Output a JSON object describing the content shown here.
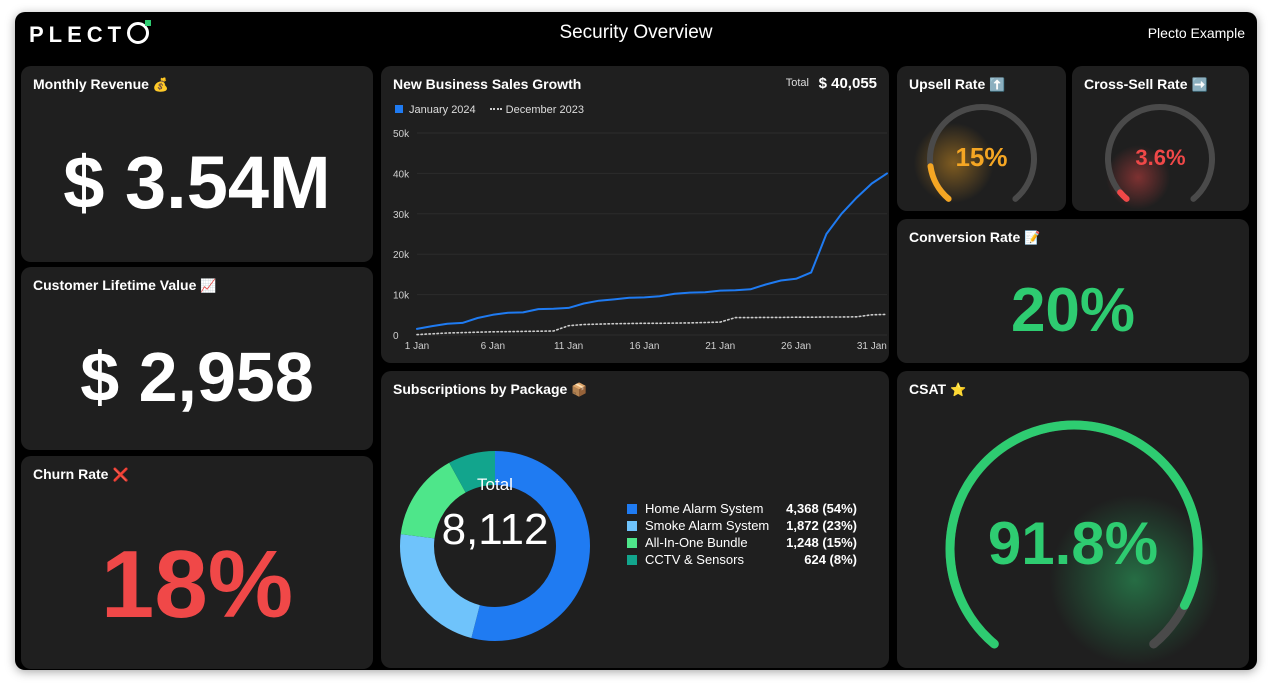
{
  "header": {
    "logo": "PLECT",
    "title": "Security Overview",
    "account": "Plecto Example"
  },
  "monthly_revenue": {
    "title": "Monthly Revenue",
    "emoji": "💰",
    "value": "$ 3.54M"
  },
  "clv": {
    "title": "Customer Lifetime Value",
    "emoji": "📈",
    "value": "$ 2,958"
  },
  "churn": {
    "title": "Churn Rate",
    "emoji": "❌",
    "value": "18%",
    "color": "#f04848"
  },
  "sales_growth": {
    "title": "New Business Sales Growth",
    "total_label": "Total",
    "total_value": "$ 40,055",
    "legend_current": "January 2024",
    "legend_previous": "December 2023"
  },
  "upsell": {
    "title": "Upsell Rate",
    "emoji": "⬆️",
    "value": "15%",
    "percent": 15,
    "color": "#f5a623"
  },
  "crosssell": {
    "title": "Cross-Sell Rate",
    "emoji": "➡️",
    "value": "3.6%",
    "percent": 3.6,
    "color": "#f04848"
  },
  "conversion": {
    "title": "Conversion Rate",
    "emoji": "📝",
    "value": "20%",
    "color": "#2ecc71"
  },
  "subscriptions": {
    "title": "Subscriptions by Package",
    "emoji": "📦",
    "total_label": "Total",
    "total_value": "8,112",
    "items": [
      {
        "name": "Home Alarm System",
        "value": "4,368 (54%)",
        "share": 54,
        "color": "#1f7bf2"
      },
      {
        "name": "Smoke Alarm System",
        "value": "1,872 (23%)",
        "share": 23,
        "color": "#6fc3fb"
      },
      {
        "name": "All-In-One Bundle",
        "value": "1,248 (15%)",
        "share": 15,
        "color": "#4ee68a"
      },
      {
        "name": "CCTV & Sensors",
        "value": "624 (8%)",
        "share": 8,
        "color": "#12a58d"
      }
    ]
  },
  "csat": {
    "title": "CSAT",
    "emoji": "⭐",
    "value": "91.8%",
    "percent": 91.8,
    "color": "#2ecc71"
  },
  "chart_data": {
    "type": "line",
    "title": "New Business Sales Growth",
    "ylim": [
      0,
      50000
    ],
    "yticks": [
      0,
      10000,
      20000,
      30000,
      40000,
      50000
    ],
    "ytick_labels": [
      "0",
      "10k",
      "20k",
      "30k",
      "40k",
      "50k"
    ],
    "xlim": [
      1,
      32
    ],
    "xticks": [
      1,
      6,
      11,
      16,
      21,
      26,
      31
    ],
    "xtick_labels": [
      "1 Jan",
      "6 Jan",
      "11 Jan",
      "16 Jan",
      "21 Jan",
      "26 Jan",
      "31 Jan"
    ],
    "series": [
      {
        "name": "January 2024",
        "style": "solid",
        "color": "#1f7bf2",
        "x": [
          1,
          2,
          3,
          4,
          5,
          6,
          7,
          8,
          9,
          10,
          11,
          12,
          13,
          14,
          15,
          16,
          17,
          18,
          19,
          20,
          21,
          22,
          23,
          24,
          25,
          26,
          27,
          28,
          29,
          30,
          31,
          32
        ],
        "values": [
          1500,
          2200,
          2800,
          3000,
          4200,
          5000,
          5500,
          5600,
          6400,
          6500,
          6700,
          7800,
          8500,
          8800,
          9200,
          9300,
          9600,
          10200,
          10500,
          10600,
          11000,
          11100,
          11300,
          12500,
          13500,
          13900,
          15500,
          25000,
          30000,
          34000,
          37500,
          40000
        ]
      },
      {
        "name": "December 2023",
        "style": "dotted",
        "color": "#cccccc",
        "x": [
          1,
          2,
          3,
          4,
          5,
          6,
          7,
          8,
          9,
          10,
          11,
          12,
          13,
          14,
          15,
          16,
          17,
          18,
          19,
          20,
          21,
          22,
          23,
          24,
          25,
          26,
          27,
          28,
          29,
          30,
          31,
          32
        ],
        "values": [
          100,
          300,
          500,
          600,
          700,
          800,
          850,
          900,
          950,
          1000,
          2300,
          2600,
          2700,
          2800,
          2850,
          2900,
          2900,
          2950,
          3000,
          3100,
          3200,
          4300,
          4300,
          4350,
          4350,
          4400,
          4400,
          4450,
          4450,
          4500,
          5000,
          5100
        ]
      }
    ]
  }
}
